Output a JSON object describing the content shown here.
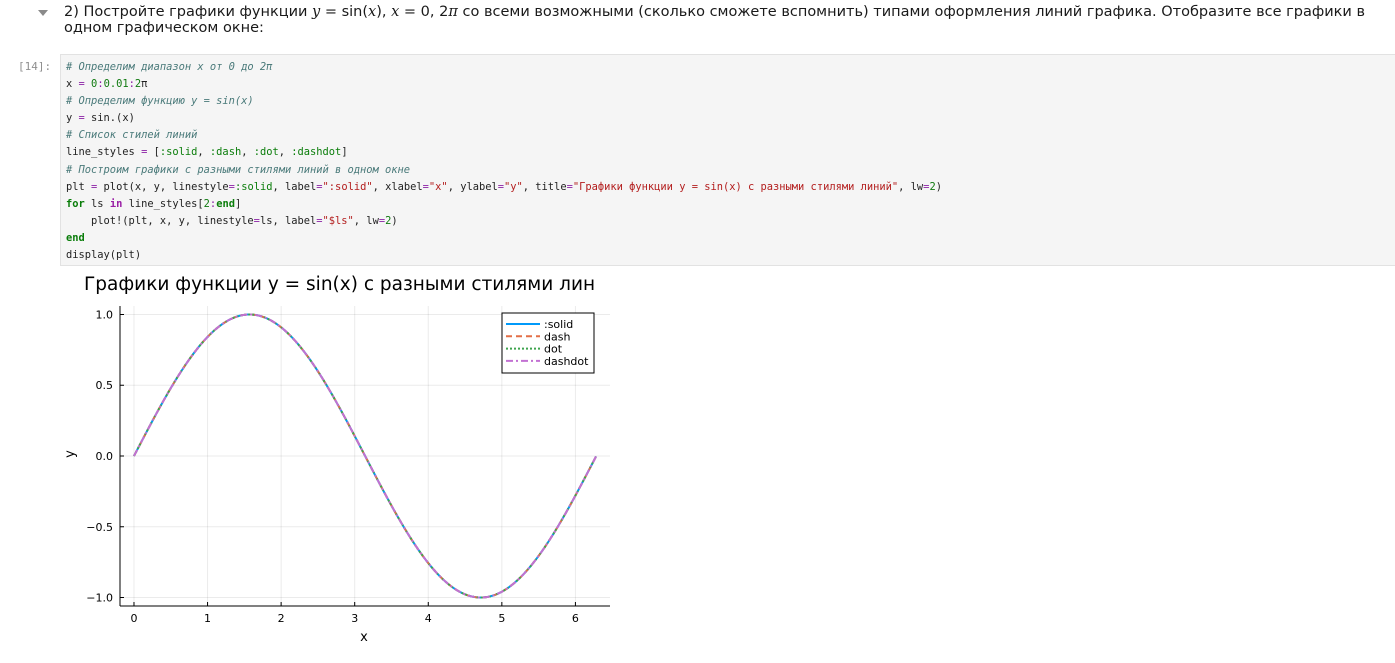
{
  "markdown": {
    "prefix": "2) Постройте графики функции ",
    "eq_y": "y",
    "eq_eq": " = sin(",
    "eq_x": "x",
    "eq_close": "),",
    "x_var": "x",
    "range_text": " = 0, 2",
    "pi": "π",
    "suffix": " со всеми возможными (сколько сможете вспомнить) типами оформления линий графика. Отобразите все графики в одном графическом окне:"
  },
  "cell": {
    "prompt": "[14]:",
    "code_lines": [
      {
        "parts": [
          {
            "t": "# Определим диапазон x от 0 до 2π",
            "c": "cm"
          }
        ]
      },
      {
        "parts": [
          {
            "t": "x ",
            "c": ""
          },
          {
            "t": "=",
            "c": "op"
          },
          {
            "t": " ",
            "c": ""
          },
          {
            "t": "0",
            "c": "num"
          },
          {
            "t": ":",
            "c": "op"
          },
          {
            "t": "0.01",
            "c": "num"
          },
          {
            "t": ":",
            "c": "op"
          },
          {
            "t": "2",
            "c": "num"
          },
          {
            "t": "π",
            "c": ""
          }
        ]
      },
      {
        "parts": [
          {
            "t": "# Определим функцию y = sin(x)",
            "c": "cm"
          }
        ]
      },
      {
        "parts": [
          {
            "t": "y ",
            "c": ""
          },
          {
            "t": "=",
            "c": "op"
          },
          {
            "t": " sin.(x)",
            "c": ""
          }
        ]
      },
      {
        "parts": [
          {
            "t": "# Список стилей линий",
            "c": "cm"
          }
        ]
      },
      {
        "parts": [
          {
            "t": "line_styles ",
            "c": ""
          },
          {
            "t": "=",
            "c": "op"
          },
          {
            "t": " [",
            "c": ""
          },
          {
            "t": ":solid",
            "c": "sym"
          },
          {
            "t": ", ",
            "c": ""
          },
          {
            "t": ":dash",
            "c": "sym"
          },
          {
            "t": ", ",
            "c": ""
          },
          {
            "t": ":dot",
            "c": "sym"
          },
          {
            "t": ", ",
            "c": ""
          },
          {
            "t": ":dashdot",
            "c": "sym"
          },
          {
            "t": "]",
            "c": ""
          }
        ]
      },
      {
        "parts": [
          {
            "t": "# Построим графики с разными стилями линий в одном окне",
            "c": "cm"
          }
        ]
      },
      {
        "parts": [
          {
            "t": "plt ",
            "c": ""
          },
          {
            "t": "=",
            "c": "op"
          },
          {
            "t": " plot(x, y, linestyle",
            "c": ""
          },
          {
            "t": "=",
            "c": "op"
          },
          {
            "t": ":solid",
            "c": "sym"
          },
          {
            "t": ", label",
            "c": ""
          },
          {
            "t": "=",
            "c": "op"
          },
          {
            "t": "\":solid\"",
            "c": "str"
          },
          {
            "t": ", xlabel",
            "c": ""
          },
          {
            "t": "=",
            "c": "op"
          },
          {
            "t": "\"x\"",
            "c": "str"
          },
          {
            "t": ", ylabel",
            "c": ""
          },
          {
            "t": "=",
            "c": "op"
          },
          {
            "t": "\"y\"",
            "c": "str"
          },
          {
            "t": ", title",
            "c": ""
          },
          {
            "t": "=",
            "c": "op"
          },
          {
            "t": "\"Графики функции y = sin(x) с разными стилями линий\"",
            "c": "str"
          },
          {
            "t": ", lw",
            "c": ""
          },
          {
            "t": "=",
            "c": "op"
          },
          {
            "t": "2",
            "c": "num"
          },
          {
            "t": ")",
            "c": ""
          }
        ]
      },
      {
        "parts": [
          {
            "t": "for",
            "c": "kw"
          },
          {
            "t": " ls ",
            "c": ""
          },
          {
            "t": "in",
            "c": "kw2"
          },
          {
            "t": " line_styles[",
            "c": ""
          },
          {
            "t": "2",
            "c": "num"
          },
          {
            "t": ":",
            "c": "op"
          },
          {
            "t": "end",
            "c": "kw"
          },
          {
            "t": "]",
            "c": ""
          }
        ]
      },
      {
        "parts": [
          {
            "t": "    plot!(plt, x, y, linestyle",
            "c": ""
          },
          {
            "t": "=",
            "c": "op"
          },
          {
            "t": "ls, label",
            "c": ""
          },
          {
            "t": "=",
            "c": "op"
          },
          {
            "t": "\"$ls\"",
            "c": "str"
          },
          {
            "t": ", lw",
            "c": ""
          },
          {
            "t": "=",
            "c": "op"
          },
          {
            "t": "2",
            "c": "num"
          },
          {
            "t": ")",
            "c": ""
          }
        ]
      },
      {
        "parts": [
          {
            "t": "end",
            "c": "kw"
          }
        ]
      },
      {
        "parts": [
          {
            "t": "display(plt)",
            "c": ""
          }
        ]
      }
    ]
  },
  "chart_data": {
    "type": "line",
    "title": "Графики функции y = sin(x) с разными стилями лин",
    "xlabel": "x",
    "ylabel": "y",
    "xlim": [
      -0.19,
      6.47
    ],
    "ylim": [
      -1.06,
      1.06
    ],
    "x_ticks": [
      "0",
      "1",
      "2",
      "3",
      "4",
      "5",
      "6"
    ],
    "y_ticks": [
      "1.0",
      "0.5",
      "0.0",
      "−0.5",
      "−1.0"
    ],
    "function": "sin(x)",
    "x_range": [
      0,
      6.28
    ],
    "grid": true,
    "legend_position": "top-right",
    "series": [
      {
        "name": ":solid",
        "color": "#009AFA",
        "style": "solid"
      },
      {
        "name": "dash",
        "color": "#E36F47",
        "style": "dash"
      },
      {
        "name": "dot",
        "color": "#3EA44E",
        "style": "dot"
      },
      {
        "name": "dashdot",
        "color": "#C271D2",
        "style": "dashdot"
      }
    ]
  }
}
